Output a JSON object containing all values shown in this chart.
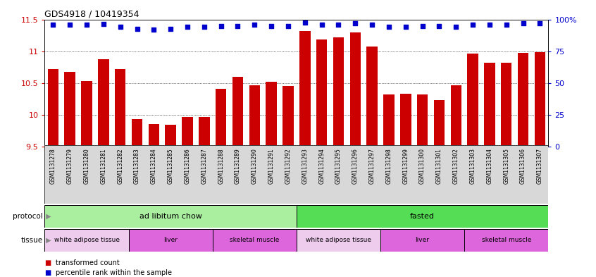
{
  "title": "GDS4918 / 10419354",
  "samples": [
    "GSM1131278",
    "GSM1131279",
    "GSM1131280",
    "GSM1131281",
    "GSM1131282",
    "GSM1131283",
    "GSM1131284",
    "GSM1131285",
    "GSM1131286",
    "GSM1131287",
    "GSM1131288",
    "GSM1131289",
    "GSM1131290",
    "GSM1131291",
    "GSM1131292",
    "GSM1131293",
    "GSM1131294",
    "GSM1131295",
    "GSM1131296",
    "GSM1131297",
    "GSM1131298",
    "GSM1131299",
    "GSM1131300",
    "GSM1131301",
    "GSM1131302",
    "GSM1131303",
    "GSM1131304",
    "GSM1131305",
    "GSM1131306",
    "GSM1131307"
  ],
  "bar_values": [
    10.72,
    10.68,
    10.53,
    10.88,
    10.72,
    9.93,
    9.86,
    9.85,
    9.97,
    9.97,
    10.41,
    10.6,
    10.47,
    10.52,
    10.46,
    11.32,
    11.19,
    11.22,
    11.3,
    11.07,
    10.32,
    10.33,
    10.32,
    10.23,
    10.47,
    10.96,
    10.82,
    10.82,
    10.97,
    10.99
  ],
  "percentile_values": [
    11.42,
    11.42,
    11.42,
    11.43,
    11.38,
    11.35,
    11.34,
    11.35,
    11.38,
    11.38,
    11.4,
    11.4,
    11.42,
    11.4,
    11.4,
    11.45,
    11.42,
    11.42,
    11.44,
    11.42,
    11.38,
    11.38,
    11.4,
    11.4,
    11.38,
    11.42,
    11.42,
    11.42,
    11.44,
    11.44
  ],
  "ylim": [
    9.5,
    11.5
  ],
  "yticks_left": [
    9.5,
    10.0,
    10.5,
    11.0,
    11.5
  ],
  "yticks_right": [
    0,
    25,
    50,
    75,
    100
  ],
  "bar_color": "#cc0000",
  "dot_color": "#0000cc",
  "protocol_groups": [
    {
      "label": "ad libitum chow",
      "start": 0,
      "end": 15,
      "color": "#aaeea a"
    },
    {
      "label": "fasted",
      "start": 15,
      "end": 30,
      "color": "#55dd55"
    }
  ],
  "tissue_groups": [
    {
      "label": "white adipose tissue",
      "start": 0,
      "end": 5,
      "color": "#eeccee"
    },
    {
      "label": "liver",
      "start": 5,
      "end": 10,
      "color": "#dd66dd"
    },
    {
      "label": "skeletal muscle",
      "start": 10,
      "end": 15,
      "color": "#dd66dd"
    },
    {
      "label": "white adipose tissue",
      "start": 15,
      "end": 20,
      "color": "#eeccee"
    },
    {
      "label": "liver",
      "start": 20,
      "end": 25,
      "color": "#dd66dd"
    },
    {
      "label": "skeletal muscle",
      "start": 25,
      "end": 30,
      "color": "#dd66dd"
    }
  ],
  "legend_red_label": "transformed count",
  "legend_blue_label": "percentile rank within the sample",
  "n_samples": 30,
  "protocol_label": "protocol",
  "tissue_label": "tissue"
}
